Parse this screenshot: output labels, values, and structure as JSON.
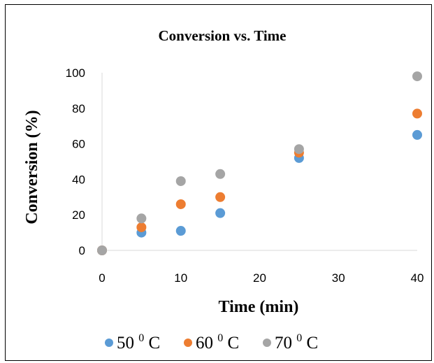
{
  "chart_data": {
    "type": "scatter",
    "title": "Conversion vs. Time",
    "xlabel": "Time (min)",
    "ylabel": "Conversion (%)",
    "xlim": [
      0,
      40
    ],
    "ylim": [
      0,
      100
    ],
    "xticks": [
      "0",
      "10",
      "20",
      "30",
      "40"
    ],
    "yticks": [
      "0",
      "20",
      "40",
      "60",
      "80",
      "100"
    ],
    "grid": false,
    "legend_position": "bottom",
    "x": [
      0,
      5,
      10,
      15,
      25,
      40
    ],
    "series": [
      {
        "name": "50",
        "name_sup": "0",
        "name_unit": "C",
        "color": "#5b9bd5",
        "values": [
          0,
          10,
          11,
          21,
          52,
          65
        ]
      },
      {
        "name": "60",
        "name_sup": "0",
        "name_unit": "C",
        "color": "#ed7d31",
        "values": [
          0,
          13,
          26,
          30,
          55,
          77
        ]
      },
      {
        "name": "70",
        "name_sup": "0",
        "name_unit": "C",
        "color": "#a5a5a5",
        "values": [
          0,
          18,
          39,
          43,
          57,
          98
        ]
      }
    ]
  }
}
